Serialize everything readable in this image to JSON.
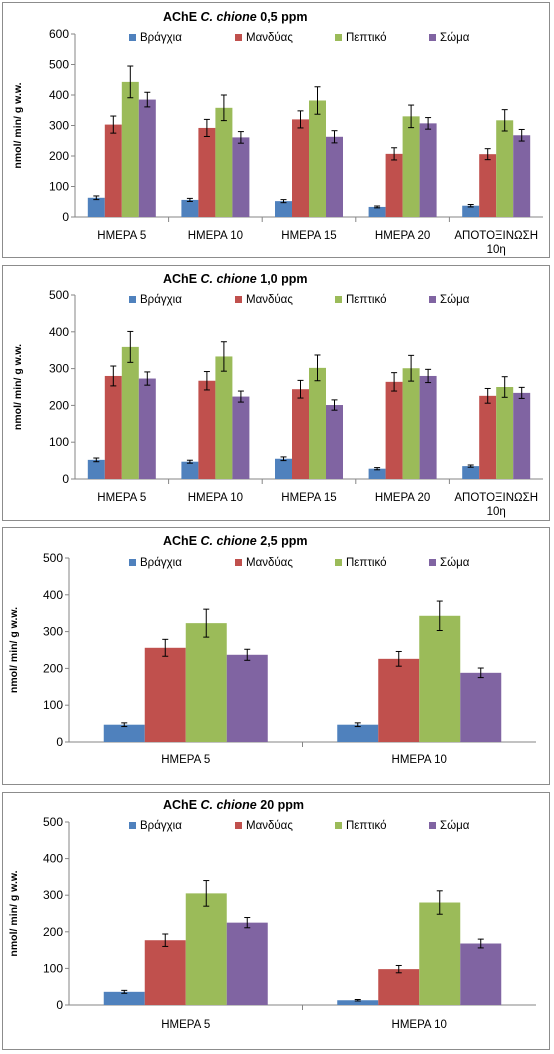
{
  "series_colors": [
    "#4f81bd",
    "#c0504d",
    "#9bbb59",
    "#8064a2"
  ],
  "chart_data": [
    {
      "type": "bar",
      "title": {
        "prefix": "AChE",
        "species": "C. chione",
        "conc": "0,5 ppm"
      },
      "ylabel": "nmol/ min/ g w.w.",
      "ylim": [
        0,
        600
      ],
      "yticks": [
        0,
        100,
        200,
        300,
        400,
        500,
        600
      ],
      "categories": [
        [
          "ΗΜΕΡΑ 5"
        ],
        [
          "ΗΜΕΡΑ 10"
        ],
        [
          "ΗΜΕΡΑ 15"
        ],
        [
          "ΗΜΕΡΑ 20"
        ],
        [
          "ΑΠΟΤΟΞΙΝΩΣΗ",
          "10η"
        ]
      ],
      "series": [
        {
          "name": "Βράγχια",
          "values": [
            63,
            56,
            52,
            33,
            37
          ],
          "errors": [
            6,
            5,
            5,
            3,
            4
          ]
        },
        {
          "name": "Μανδύας",
          "values": [
            303,
            292,
            320,
            207,
            206
          ],
          "errors": [
            28,
            28,
            28,
            20,
            18
          ]
        },
        {
          "name": "Πεπτικό",
          "values": [
            443,
            358,
            382,
            330,
            317
          ],
          "errors": [
            52,
            42,
            45,
            37,
            35
          ]
        },
        {
          "name": "Σώμα",
          "values": [
            385,
            261,
            263,
            307,
            268
          ],
          "errors": [
            24,
            19,
            20,
            19,
            19
          ]
        }
      ],
      "legend": "top",
      "grid": false
    },
    {
      "type": "bar",
      "title": {
        "prefix": "AChE",
        "species": "C. chione",
        "conc": "1,0 ppm"
      },
      "ylabel": "nmol/ min/ g w.w.",
      "ylim": [
        0,
        500
      ],
      "yticks": [
        0,
        100,
        200,
        300,
        400,
        500
      ],
      "categories": [
        [
          "ΗΜΕΡΑ 5"
        ],
        [
          "ΗΜΕΡΑ 10"
        ],
        [
          "ΗΜΕΡΑ 15"
        ],
        [
          "ΗΜΕΡΑ 20"
        ],
        [
          "ΑΠΟΤΟΞΙΝΩΣΗ",
          "10η"
        ]
      ],
      "series": [
        {
          "name": "Βράγχια",
          "values": [
            52,
            47,
            55,
            28,
            35
          ],
          "errors": [
            5,
            4,
            5,
            3,
            3
          ]
        },
        {
          "name": "Μανδύας",
          "values": [
            280,
            267,
            244,
            264,
            226
          ],
          "errors": [
            27,
            25,
            24,
            25,
            20
          ]
        },
        {
          "name": "Πεπτικό",
          "values": [
            359,
            333,
            302,
            301,
            250
          ],
          "errors": [
            42,
            40,
            35,
            35,
            28
          ]
        },
        {
          "name": "Σώμα",
          "values": [
            273,
            224,
            201,
            280,
            234
          ],
          "errors": [
            18,
            15,
            14,
            18,
            15
          ]
        }
      ],
      "legend": "top",
      "grid": false
    },
    {
      "type": "bar",
      "title": {
        "prefix": "AChE",
        "species": "C. chione",
        "conc": "2,5 ppm"
      },
      "ylabel": "nmol/ min/ g w.w.",
      "ylim": [
        0,
        500
      ],
      "yticks": [
        0,
        100,
        200,
        300,
        400,
        500
      ],
      "categories": [
        [
          "ΗΜΕΡΑ 5"
        ],
        [
          "ΗΜΕΡΑ 10"
        ]
      ],
      "series": [
        {
          "name": "Βράγχια",
          "values": [
            47,
            47
          ],
          "errors": [
            5,
            5
          ]
        },
        {
          "name": "Μανδύας",
          "values": [
            256,
            226
          ],
          "errors": [
            23,
            20
          ]
        },
        {
          "name": "Πεπτικό",
          "values": [
            323,
            343
          ],
          "errors": [
            38,
            40
          ]
        },
        {
          "name": "Σώμα",
          "values": [
            237,
            188
          ],
          "errors": [
            15,
            13
          ]
        }
      ],
      "legend": "top",
      "grid": false
    },
    {
      "type": "bar",
      "title": {
        "prefix": "AChE",
        "species": "C. chione",
        "conc": "20 ppm"
      },
      "ylabel": "nmol/ min/ g w.w.",
      "ylim": [
        0,
        500
      ],
      "yticks": [
        0,
        100,
        200,
        300,
        400,
        500
      ],
      "categories": [
        [
          "ΗΜΕΡΑ 5"
        ],
        [
          "ΗΜΕΡΑ 10"
        ]
      ],
      "series": [
        {
          "name": "Βράγχια",
          "values": [
            36,
            13
          ],
          "errors": [
            4,
            2
          ]
        },
        {
          "name": "Μανδύας",
          "values": [
            177,
            98
          ],
          "errors": [
            17,
            10
          ]
        },
        {
          "name": "Πεπτικό",
          "values": [
            305,
            280
          ],
          "errors": [
            35,
            32
          ]
        },
        {
          "name": "Σώμα",
          "values": [
            225,
            168
          ],
          "errors": [
            14,
            12
          ]
        }
      ],
      "legend": "top",
      "grid": false
    }
  ]
}
